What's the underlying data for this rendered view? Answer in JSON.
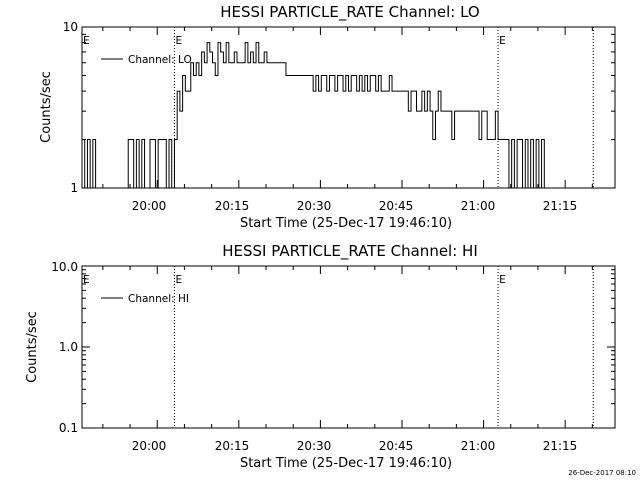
{
  "chart_data": [
    {
      "type": "line",
      "title": "HESSI PARTICLE_RATE Channel: LO",
      "xlabel": "Start Time (25-Dec-17 19:46:10)",
      "ylabel": "Counts/sec",
      "yscale": "log",
      "ylim": [
        1,
        10
      ],
      "xlim_minutes": [
        0,
        98
      ],
      "x_tick_labels": [
        "20:00",
        "20:15",
        "20:30",
        "20:45",
        "21:00",
        "21:15"
      ],
      "y_tick_labels": [
        "1",
        "10"
      ],
      "legend": {
        "placement": "top-left",
        "entries": [
          "Channel: LO"
        ]
      },
      "event_markers": [
        {
          "minute": 17.0,
          "label": "E"
        },
        {
          "minute": 76.5,
          "label": "E"
        },
        {
          "minute": 94.0,
          "label": ""
        }
      ],
      "grid": false,
      "series": [
        {
          "name": "Channel: LO",
          "x": [
            0,
            0.5,
            1,
            1.5,
            2,
            2.5,
            3,
            3.5,
            4,
            4.5,
            5,
            5.5,
            6,
            6.5,
            7,
            7.5,
            8,
            8.5,
            9,
            9.5,
            10,
            10.5,
            11,
            11.5,
            12,
            12.5,
            13,
            13.5,
            14,
            14.5,
            15,
            15.5,
            16,
            16.5,
            17,
            17.5,
            18,
            18.5,
            19,
            19.5,
            20,
            20.5,
            21,
            21.5,
            22,
            22.5,
            23,
            23.5,
            24,
            24.5,
            25,
            25.5,
            26,
            26.5,
            27,
            27.5,
            28,
            28.5,
            29,
            29.5,
            30,
            30.5,
            31,
            31.5,
            32,
            32.5,
            33,
            33.5,
            34,
            34.5,
            35,
            35.5,
            36,
            36.5,
            37,
            37.5,
            38,
            38.5,
            39,
            39.5,
            40,
            40.5,
            41,
            41.5,
            42,
            42.5,
            43,
            43.5,
            44,
            44.5,
            45,
            45.5,
            46,
            46.5,
            47,
            47.5,
            48,
            48.5,
            49,
            49.5,
            50,
            50.5,
            51,
            51.5,
            52,
            52.5,
            53,
            53.5,
            54,
            54.5,
            55,
            55.5,
            56,
            56.5,
            57,
            57.5,
            58,
            58.5,
            59,
            59.5,
            60,
            60.5,
            61,
            61.5,
            62,
            62.5,
            63,
            63.5,
            64,
            64.5,
            65,
            65.5,
            66,
            66.5,
            67,
            67.5,
            68,
            68.5,
            69,
            69.5,
            70,
            70.5,
            71,
            71.5,
            72,
            72.5,
            73,
            73.5,
            74,
            74.5,
            75,
            75.5,
            76,
            76.5,
            77,
            77.5,
            78,
            78.5,
            79,
            79.5,
            80,
            80.5,
            81,
            81.5,
            82,
            82.5,
            83,
            83.5,
            84,
            84.5,
            85,
            85.5,
            86,
            86.5,
            87,
            87.5,
            88,
            88.5,
            89,
            89.5
          ],
          "values": [
            2,
            1,
            2,
            1,
            2,
            1,
            1,
            1,
            1,
            1,
            1,
            1,
            1,
            1,
            1,
            1,
            1,
            2,
            2,
            1,
            2,
            1,
            2,
            1,
            1,
            2,
            2,
            1,
            2,
            2,
            2,
            1,
            2,
            1,
            2,
            4,
            3,
            5,
            4,
            4,
            6,
            5,
            6,
            5,
            7,
            6,
            8,
            7,
            6,
            5,
            8,
            7,
            6,
            8,
            6,
            6,
            7,
            6,
            6,
            6,
            8,
            6,
            7,
            6,
            8,
            6,
            6,
            7,
            6,
            6,
            6,
            6,
            6,
            6,
            6,
            5,
            5,
            5,
            5,
            5,
            5,
            5,
            5,
            5,
            5,
            4,
            5,
            4,
            5,
            5,
            4,
            5,
            5,
            4,
            5,
            5,
            4,
            5,
            4,
            5,
            5,
            4,
            5,
            4,
            5,
            4,
            5,
            5,
            4,
            5,
            4,
            4,
            4,
            5,
            4,
            4,
            4,
            4,
            4,
            4,
            3,
            4,
            4,
            3,
            3,
            4,
            3,
            4,
            3,
            2,
            3,
            4,
            3,
            3,
            3,
            3,
            2,
            3,
            3,
            3,
            3,
            3,
            3,
            3,
            3,
            3,
            2,
            3,
            3,
            2,
            2,
            2,
            3,
            2,
            2,
            2,
            2,
            1,
            2,
            1,
            2,
            2,
            1,
            2,
            1,
            2,
            1,
            2,
            1,
            2,
            1,
            1,
            1,
            1,
            1,
            1,
            1,
            1,
            1,
            1
          ]
        }
      ]
    },
    {
      "type": "line",
      "title": "HESSI PARTICLE_RATE Channel: HI",
      "xlabel": "Start Time (25-Dec-17 19:46:10)",
      "ylabel": "Counts/sec",
      "yscale": "log",
      "ylim": [
        0.1,
        10.0
      ],
      "xlim_minutes": [
        0,
        98
      ],
      "x_tick_labels": [
        "20:00",
        "20:15",
        "20:30",
        "20:45",
        "21:00",
        "21:15"
      ],
      "y_tick_labels": [
        "0.1",
        "1.0",
        "10.0"
      ],
      "legend": {
        "placement": "top-left",
        "entries": [
          "Channel: HI"
        ]
      },
      "event_markers": [
        {
          "minute": 17.0,
          "label": "E"
        },
        {
          "minute": 76.5,
          "label": "E"
        },
        {
          "minute": 94.0,
          "label": ""
        }
      ],
      "grid": false,
      "series": [
        {
          "name": "Channel: HI",
          "x": [],
          "values": []
        }
      ]
    }
  ],
  "footer": {
    "timestamp": "26-Dec-2017 08:10"
  }
}
